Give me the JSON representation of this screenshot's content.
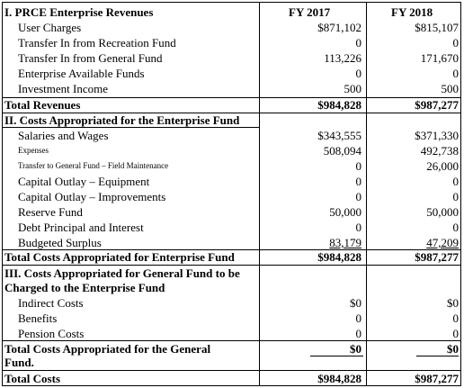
{
  "headers": {
    "fy2017": "FY 2017",
    "fy2018": "FY 2018"
  },
  "section1": {
    "title": "I.  PRCE Enterprise Revenues",
    "rows": [
      {
        "label": "User Charges",
        "fy2017": "$871,102",
        "fy2018": "$815,107"
      },
      {
        "label": "Transfer In from Recreation Fund",
        "fy2017": "0",
        "fy2018": "0"
      },
      {
        "label": "Transfer In from General Fund",
        "fy2017": "113,226",
        "fy2018": "171,670"
      },
      {
        "label": "Enterprise Available Funds",
        "fy2017": "0",
        "fy2018": "0"
      },
      {
        "label": "Investment Income",
        "fy2017": "500",
        "fy2018": "500"
      }
    ],
    "total": {
      "label": "Total Revenues",
      "fy2017": "$984,828",
      "fy2018": "$987,277"
    }
  },
  "section2": {
    "title": "II.  Costs Appropriated for the Enterprise Fund",
    "rows": [
      {
        "label": "Salaries and Wages",
        "fy2017": "$343,555",
        "fy2018": "$371,330"
      },
      {
        "label": "Expenses",
        "fy2017": "508,094",
        "fy2018": "492,738"
      },
      {
        "label": "Transfer to General Fund – Field Maintenance",
        "fy2017": "0",
        "fy2018": "26,000"
      },
      {
        "label": "Capital Outlay – Equipment",
        "fy2017": "0",
        "fy2018": "0"
      },
      {
        "label": "Capital Outlay – Improvements",
        "fy2017": "0",
        "fy2018": "0"
      },
      {
        "label": "Reserve Fund",
        "fy2017": "50,000",
        "fy2018": "50,000"
      },
      {
        "label": "Debt Principal and Interest",
        "fy2017": "0",
        "fy2018": "0"
      },
      {
        "label": "Budgeted Surplus",
        "fy2017": "83,179",
        "fy2018": "47,209"
      }
    ],
    "total": {
      "label": "Total Costs Appropriated for Enterprise Fund",
      "fy2017": "$984,828",
      "fy2018": "$987,277"
    }
  },
  "section3": {
    "title_line1": "III.  Costs Appropriated for General Fund to be",
    "title_line2": "Charged to the Enterprise Fund",
    "rows": [
      {
        "label": "Indirect Costs",
        "fy2017": "$0",
        "fy2018": "$0"
      },
      {
        "label": "Benefits",
        "fy2017": "0",
        "fy2018": "0"
      },
      {
        "label": "Pension Costs",
        "fy2017": "0",
        "fy2018": "0"
      }
    ],
    "total": {
      "label_line1": "Total Costs Appropriated for the General",
      "label_line2": "Fund.",
      "fy2017": "$0",
      "fy2018": "$0"
    }
  },
  "grand_total": {
    "label": "Total Costs",
    "fy2017": "$984,828",
    "fy2018": "$987,277"
  }
}
